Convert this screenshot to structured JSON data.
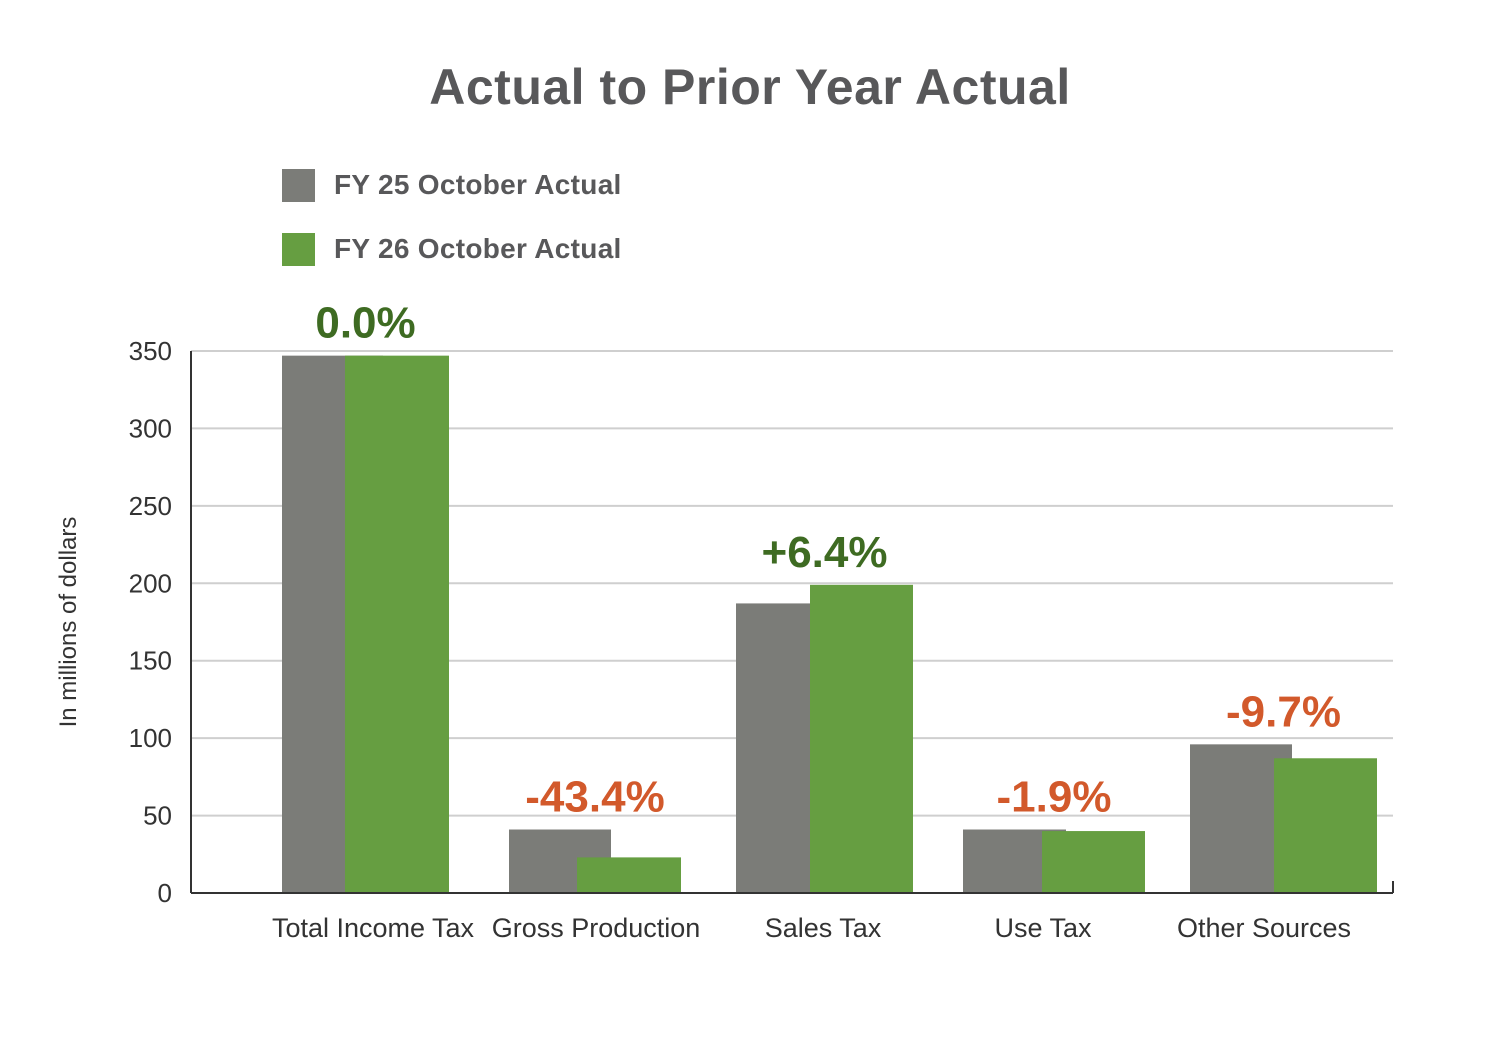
{
  "colors": {
    "fy25": "#7b7c78",
    "fy26": "#669e41",
    "positive": "#3e6b22",
    "negative": "#d2592b",
    "grid": "#cfcfcf",
    "axis": "#333333"
  },
  "chart_data": {
    "type": "bar",
    "title": "Actual to Prior Year Actual",
    "xlabel": "",
    "ylabel": "In millions of dollars",
    "ylim": [
      0,
      350
    ],
    "yticks": [
      0,
      50,
      100,
      150,
      200,
      250,
      300,
      350
    ],
    "grid": true,
    "legend_position": "top-left",
    "categories": [
      "Total Income Tax",
      "Gross Production",
      "Sales Tax",
      "Use Tax",
      "Other Sources"
    ],
    "series": [
      {
        "name": "FY 25 October Actual",
        "values": [
          347,
          41,
          187,
          41,
          96
        ]
      },
      {
        "name": "FY 26 October Actual",
        "values": [
          347,
          23,
          199,
          40,
          87
        ]
      }
    ],
    "annotations": [
      {
        "text": "0.0%",
        "sign": "positive"
      },
      {
        "text": "-43.4%",
        "sign": "negative"
      },
      {
        "text": "+6.4%",
        "sign": "positive"
      },
      {
        "text": "-1.9%",
        "sign": "negative"
      },
      {
        "text": "-9.7%",
        "sign": "negative"
      }
    ]
  }
}
